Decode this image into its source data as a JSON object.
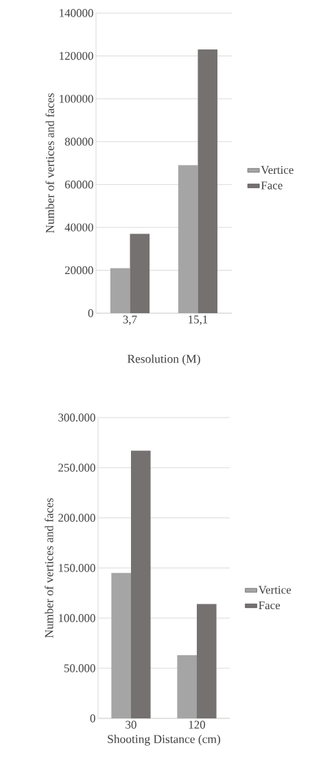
{
  "chart_data": [
    {
      "type": "bar",
      "xlabel": "Resolution (M)",
      "ylabel": "Number of vertices and faces",
      "categories": [
        "3,7",
        "15,1"
      ],
      "series": [
        {
          "name": "Vertice",
          "color": "#a5a5a5",
          "values": [
            21000,
            69000
          ]
        },
        {
          "name": "Face",
          "color": "#767171",
          "values": [
            37000,
            123000
          ]
        }
      ],
      "ylim": [
        0,
        140000
      ],
      "yticks": [
        0,
        20000,
        40000,
        60000,
        80000,
        100000,
        120000,
        140000
      ],
      "grid": "y",
      "legend": "right"
    },
    {
      "type": "bar",
      "xlabel": "Shooting Distance (cm)",
      "ylabel": "Number of vertices and faces",
      "categories": [
        "30",
        "120"
      ],
      "series": [
        {
          "name": "Vertice",
          "color": "#a5a5a5",
          "values": [
            145000,
            63000
          ]
        },
        {
          "name": "Face",
          "color": "#767171",
          "values": [
            267000,
            114000
          ]
        }
      ],
      "ylim": [
        0,
        300000
      ],
      "yticks": [
        0,
        {
          "value": 50000,
          "label": "50.000"
        },
        {
          "value": 100000,
          "label": "100.000"
        },
        {
          "value": 150000,
          "label": "150.000"
        },
        {
          "value": 200000,
          "label": "200.000"
        },
        {
          "value": 250000,
          "label": "250.000"
        },
        {
          "value": 300000,
          "label": "300.000"
        }
      ],
      "grid": "y",
      "legend": "right"
    }
  ]
}
